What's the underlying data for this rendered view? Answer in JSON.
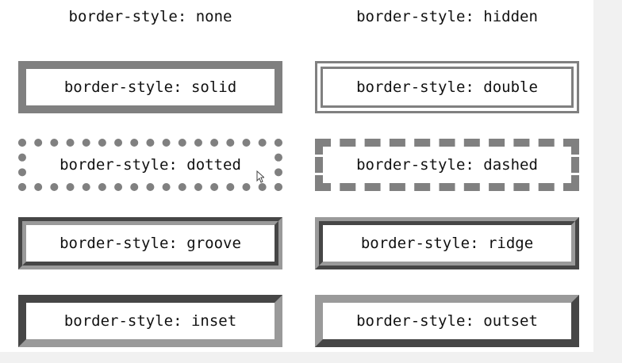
{
  "boxes": [
    {
      "id": "none",
      "label": "border-style: none"
    },
    {
      "id": "hidden",
      "label": "border-style: hidden"
    },
    {
      "id": "solid",
      "label": "border-style: solid"
    },
    {
      "id": "double",
      "label": "border-style: double"
    },
    {
      "id": "dotted",
      "label": "border-style: dotted"
    },
    {
      "id": "dashed",
      "label": "border-style: dashed"
    },
    {
      "id": "groove",
      "label": "border-style: groove"
    },
    {
      "id": "ridge",
      "label": "border-style: ridge"
    },
    {
      "id": "inset",
      "label": "border-style: inset"
    },
    {
      "id": "outset",
      "label": "border-style: outset"
    }
  ],
  "colors": {
    "border": "#808080",
    "background": "#ffffff",
    "text": "#111111"
  },
  "cursor": {
    "icon": "mouse-pointer-icon"
  }
}
